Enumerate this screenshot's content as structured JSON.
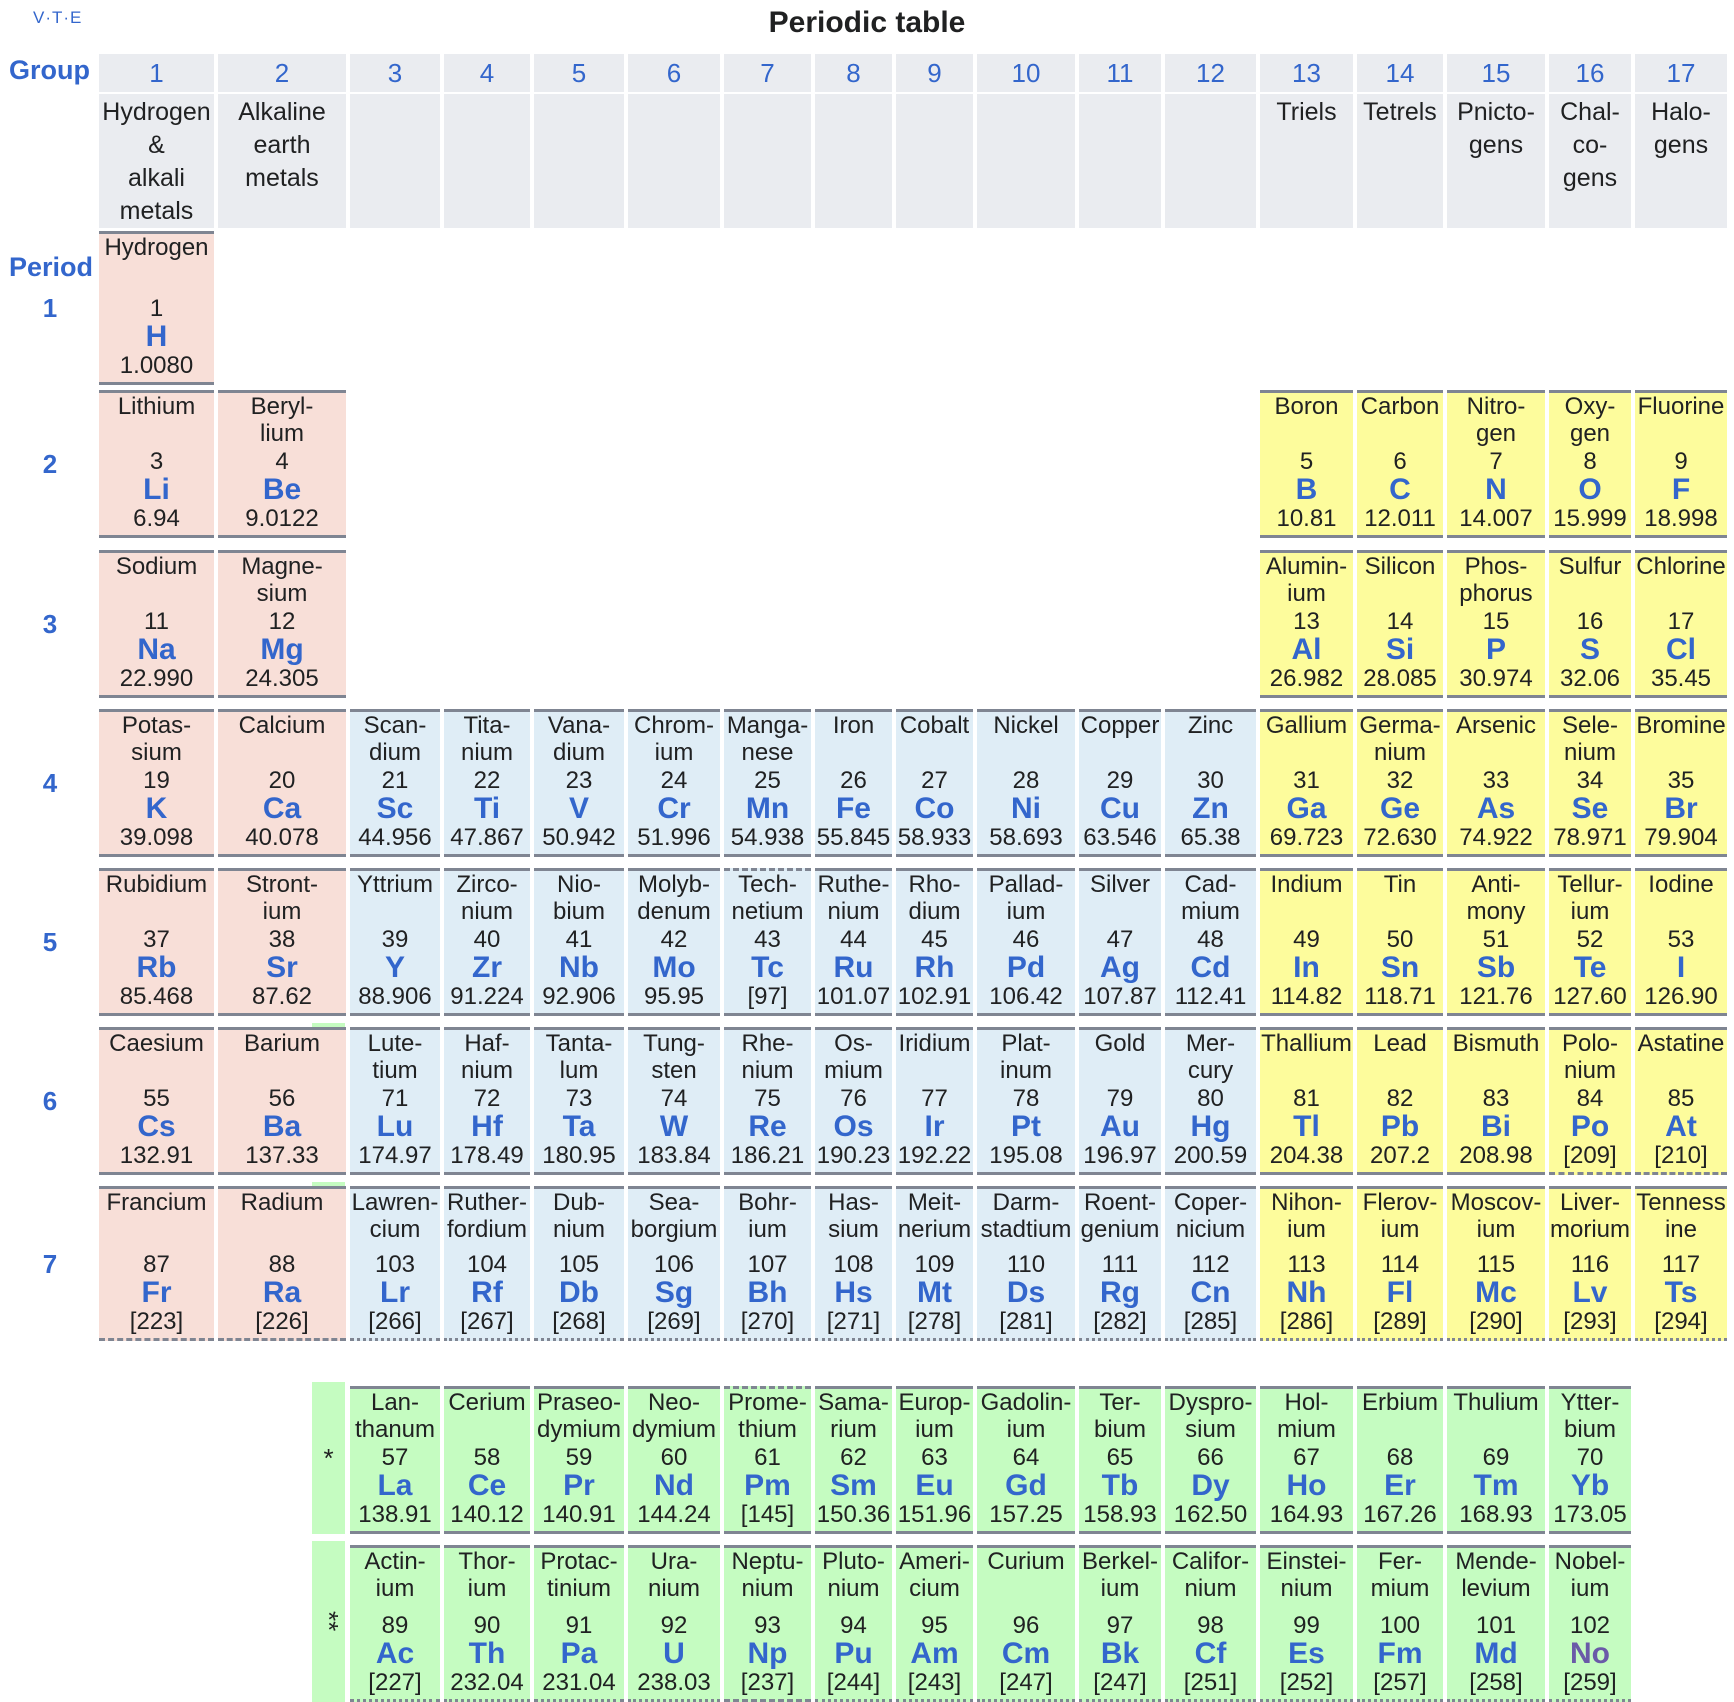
{
  "header": {
    "vte": "V·T·E",
    "title": "Periodic table"
  },
  "labels": {
    "group": "Group",
    "period": "Period"
  },
  "groups": [
    "1",
    "2",
    "3",
    "4",
    "5",
    "6",
    "7",
    "8",
    "9",
    "10",
    "11",
    "12",
    "13",
    "14",
    "15",
    "16",
    "17"
  ],
  "group_names": {
    "1": "Hydrogen\n&\nalkali\nmetals",
    "2": "Alkaline\nearth\nmetals",
    "13": "Triels",
    "14": "Tetrels",
    "15": "Pnicto-\ngens",
    "16": "Chal-\nco-\ngens",
    "17": "Halo-\ngens"
  },
  "periods": [
    "1",
    "2",
    "3",
    "4",
    "5",
    "6",
    "7"
  ],
  "markers": {
    "lanthanide": "*",
    "actinide": "**"
  },
  "colors": {
    "s_block": "#f8dfd8",
    "d_block": "#dfedf6",
    "p_block": "#fdfc9c",
    "f_block": "#c5fcc1",
    "link": "#3366cc"
  },
  "elements": [
    {
      "name": "Hydrogen",
      "z": "1",
      "sym": "H",
      "w": "1.0080",
      "g": 1,
      "p": 1,
      "b": "s"
    },
    {
      "name": "Lithium",
      "z": "3",
      "sym": "Li",
      "w": "6.94",
      "g": 1,
      "p": 2,
      "b": "s"
    },
    {
      "name": "Beryl-\nlium",
      "z": "4",
      "sym": "Be",
      "w": "9.0122",
      "g": 2,
      "p": 2,
      "b": "s"
    },
    {
      "name": "Boron",
      "z": "5",
      "sym": "B",
      "w": "10.81",
      "g": 13,
      "p": 2,
      "b": "p"
    },
    {
      "name": "Carbon",
      "z": "6",
      "sym": "C",
      "w": "12.011",
      "g": 14,
      "p": 2,
      "b": "p"
    },
    {
      "name": "Nitro-\ngen",
      "z": "7",
      "sym": "N",
      "w": "14.007",
      "g": 15,
      "p": 2,
      "b": "p"
    },
    {
      "name": "Oxy-\ngen",
      "z": "8",
      "sym": "O",
      "w": "15.999",
      "g": 16,
      "p": 2,
      "b": "p"
    },
    {
      "name": "Fluorine",
      "z": "9",
      "sym": "F",
      "w": "18.998",
      "g": 17,
      "p": 2,
      "b": "p"
    },
    {
      "name": "Sodium",
      "z": "11",
      "sym": "Na",
      "w": "22.990",
      "g": 1,
      "p": 3,
      "b": "s"
    },
    {
      "name": "Magne-\nsium",
      "z": "12",
      "sym": "Mg",
      "w": "24.305",
      "g": 2,
      "p": 3,
      "b": "s"
    },
    {
      "name": "Alumin-\nium",
      "z": "13",
      "sym": "Al",
      "w": "26.982",
      "g": 13,
      "p": 3,
      "b": "p"
    },
    {
      "name": "Silicon",
      "z": "14",
      "sym": "Si",
      "w": "28.085",
      "g": 14,
      "p": 3,
      "b": "p"
    },
    {
      "name": "Phos-\nphorus",
      "z": "15",
      "sym": "P",
      "w": "30.974",
      "g": 15,
      "p": 3,
      "b": "p"
    },
    {
      "name": "Sulfur",
      "z": "16",
      "sym": "S",
      "w": "32.06",
      "g": 16,
      "p": 3,
      "b": "p"
    },
    {
      "name": "Chlorine",
      "z": "17",
      "sym": "Cl",
      "w": "35.45",
      "g": 17,
      "p": 3,
      "b": "p"
    },
    {
      "name": "Potas-\nsium",
      "z": "19",
      "sym": "K",
      "w": "39.098",
      "g": 1,
      "p": 4,
      "b": "s"
    },
    {
      "name": "Calcium",
      "z": "20",
      "sym": "Ca",
      "w": "40.078",
      "g": 2,
      "p": 4,
      "b": "s"
    },
    {
      "name": "Scan-\ndium",
      "z": "21",
      "sym": "Sc",
      "w": "44.956",
      "g": 3,
      "p": 4,
      "b": "d"
    },
    {
      "name": "Tita-\nnium",
      "z": "22",
      "sym": "Ti",
      "w": "47.867",
      "g": 4,
      "p": 4,
      "b": "d"
    },
    {
      "name": "Vana-\ndium",
      "z": "23",
      "sym": "V",
      "w": "50.942",
      "g": 5,
      "p": 4,
      "b": "d"
    },
    {
      "name": "Chrom-\nium",
      "z": "24",
      "sym": "Cr",
      "w": "51.996",
      "g": 6,
      "p": 4,
      "b": "d"
    },
    {
      "name": "Manga-\nnese",
      "z": "25",
      "sym": "Mn",
      "w": "54.938",
      "g": 7,
      "p": 4,
      "b": "d"
    },
    {
      "name": "Iron",
      "z": "26",
      "sym": "Fe",
      "w": "55.845",
      "g": 8,
      "p": 4,
      "b": "d"
    },
    {
      "name": "Cobalt",
      "z": "27",
      "sym": "Co",
      "w": "58.933",
      "g": 9,
      "p": 4,
      "b": "d"
    },
    {
      "name": "Nickel",
      "z": "28",
      "sym": "Ni",
      "w": "58.693",
      "g": 10,
      "p": 4,
      "b": "d"
    },
    {
      "name": "Copper",
      "z": "29",
      "sym": "Cu",
      "w": "63.546",
      "g": 11,
      "p": 4,
      "b": "d"
    },
    {
      "name": "Zinc",
      "z": "30",
      "sym": "Zn",
      "w": "65.38",
      "g": 12,
      "p": 4,
      "b": "d"
    },
    {
      "name": "Gallium",
      "z": "31",
      "sym": "Ga",
      "w": "69.723",
      "g": 13,
      "p": 4,
      "b": "p"
    },
    {
      "name": "Germa-\nnium",
      "z": "32",
      "sym": "Ge",
      "w": "72.630",
      "g": 14,
      "p": 4,
      "b": "p"
    },
    {
      "name": "Arsenic",
      "z": "33",
      "sym": "As",
      "w": "74.922",
      "g": 15,
      "p": 4,
      "b": "p"
    },
    {
      "name": "Sele-\nnium",
      "z": "34",
      "sym": "Se",
      "w": "78.971",
      "g": 16,
      "p": 4,
      "b": "p"
    },
    {
      "name": "Bromine",
      "z": "35",
      "sym": "Br",
      "w": "79.904",
      "g": 17,
      "p": 4,
      "b": "p"
    },
    {
      "name": "Rubidium",
      "z": "37",
      "sym": "Rb",
      "w": "85.468",
      "g": 1,
      "p": 5,
      "b": "s"
    },
    {
      "name": "Stront-\nium",
      "z": "38",
      "sym": "Sr",
      "w": "87.62",
      "g": 2,
      "p": 5,
      "b": "s"
    },
    {
      "name": "Yttrium",
      "z": "39",
      "sym": "Y",
      "w": "88.906",
      "g": 3,
      "p": 5,
      "b": "d"
    },
    {
      "name": "Zirco-\nnium",
      "z": "40",
      "sym": "Zr",
      "w": "91.224",
      "g": 4,
      "p": 5,
      "b": "d"
    },
    {
      "name": "Nio-\nbium",
      "z": "41",
      "sym": "Nb",
      "w": "92.906",
      "g": 5,
      "p": 5,
      "b": "d"
    },
    {
      "name": "Molyb-\ndenum",
      "z": "42",
      "sym": "Mo",
      "w": "95.95",
      "g": 6,
      "p": 5,
      "b": "d"
    },
    {
      "name": "Tech-\nnetium",
      "z": "43",
      "sym": "Tc",
      "w": "[97]",
      "g": 7,
      "p": 5,
      "b": "d"
    },
    {
      "name": "Ruthe-\nnium",
      "z": "44",
      "sym": "Ru",
      "w": "101.07",
      "g": 8,
      "p": 5,
      "b": "d"
    },
    {
      "name": "Rho-\ndium",
      "z": "45",
      "sym": "Rh",
      "w": "102.91",
      "g": 9,
      "p": 5,
      "b": "d"
    },
    {
      "name": "Pallad-\nium",
      "z": "46",
      "sym": "Pd",
      "w": "106.42",
      "g": 10,
      "p": 5,
      "b": "d"
    },
    {
      "name": "Silver",
      "z": "47",
      "sym": "Ag",
      "w": "107.87",
      "g": 11,
      "p": 5,
      "b": "d"
    },
    {
      "name": "Cad-\nmium",
      "z": "48",
      "sym": "Cd",
      "w": "112.41",
      "g": 12,
      "p": 5,
      "b": "d"
    },
    {
      "name": "Indium",
      "z": "49",
      "sym": "In",
      "w": "114.82",
      "g": 13,
      "p": 5,
      "b": "p"
    },
    {
      "name": "Tin",
      "z": "50",
      "sym": "Sn",
      "w": "118.71",
      "g": 14,
      "p": 5,
      "b": "p"
    },
    {
      "name": "Anti-\nmony",
      "z": "51",
      "sym": "Sb",
      "w": "121.76",
      "g": 15,
      "p": 5,
      "b": "p"
    },
    {
      "name": "Tellur-\nium",
      "z": "52",
      "sym": "Te",
      "w": "127.60",
      "g": 16,
      "p": 5,
      "b": "p"
    },
    {
      "name": "Iodine",
      "z": "53",
      "sym": "I",
      "w": "126.90",
      "g": 17,
      "p": 5,
      "b": "p"
    },
    {
      "name": "Caesium",
      "z": "55",
      "sym": "Cs",
      "w": "132.91",
      "g": 1,
      "p": 6,
      "b": "s"
    },
    {
      "name": "Barium",
      "z": "56",
      "sym": "Ba",
      "w": "137.33",
      "g": 2,
      "p": 6,
      "b": "s"
    },
    {
      "name": "Lute-\ntium",
      "z": "71",
      "sym": "Lu",
      "w": "174.97",
      "g": 3,
      "p": 6,
      "b": "d"
    },
    {
      "name": "Haf-\nnium",
      "z": "72",
      "sym": "Hf",
      "w": "178.49",
      "g": 4,
      "p": 6,
      "b": "d"
    },
    {
      "name": "Tanta-\nlum",
      "z": "73",
      "sym": "Ta",
      "w": "180.95",
      "g": 5,
      "p": 6,
      "b": "d"
    },
    {
      "name": "Tung-\nsten",
      "z": "74",
      "sym": "W",
      "w": "183.84",
      "g": 6,
      "p": 6,
      "b": "d"
    },
    {
      "name": "Rhe-\nnium",
      "z": "75",
      "sym": "Re",
      "w": "186.21",
      "g": 7,
      "p": 6,
      "b": "d"
    },
    {
      "name": "Os-\nmium",
      "z": "76",
      "sym": "Os",
      "w": "190.23",
      "g": 8,
      "p": 6,
      "b": "d"
    },
    {
      "name": "Iridium",
      "z": "77",
      "sym": "Ir",
      "w": "192.22",
      "g": 9,
      "p": 6,
      "b": "d"
    },
    {
      "name": "Plat-\ninum",
      "z": "78",
      "sym": "Pt",
      "w": "195.08",
      "g": 10,
      "p": 6,
      "b": "d"
    },
    {
      "name": "Gold",
      "z": "79",
      "sym": "Au",
      "w": "196.97",
      "g": 11,
      "p": 6,
      "b": "d"
    },
    {
      "name": "Mer-\ncury",
      "z": "80",
      "sym": "Hg",
      "w": "200.59",
      "g": 12,
      "p": 6,
      "b": "d"
    },
    {
      "name": "Thallium",
      "z": "81",
      "sym": "Tl",
      "w": "204.38",
      "g": 13,
      "p": 6,
      "b": "p"
    },
    {
      "name": "Lead",
      "z": "82",
      "sym": "Pb",
      "w": "207.2",
      "g": 14,
      "p": 6,
      "b": "p"
    },
    {
      "name": "Bismuth",
      "z": "83",
      "sym": "Bi",
      "w": "208.98",
      "g": 15,
      "p": 6,
      "b": "p"
    },
    {
      "name": "Polo-\nnium",
      "z": "84",
      "sym": "Po",
      "w": "[209]",
      "g": 16,
      "p": 6,
      "b": "p"
    },
    {
      "name": "Astatine",
      "z": "85",
      "sym": "At",
      "w": "[210]",
      "g": 17,
      "p": 6,
      "b": "p"
    },
    {
      "name": "Francium",
      "z": "87",
      "sym": "Fr",
      "w": "[223]",
      "g": 1,
      "p": 7,
      "b": "s"
    },
    {
      "name": "Radium",
      "z": "88",
      "sym": "Ra",
      "w": "[226]",
      "g": 2,
      "p": 7,
      "b": "s"
    },
    {
      "name": "Lawren-\ncium",
      "z": "103",
      "sym": "Lr",
      "w": "[266]",
      "g": 3,
      "p": 7,
      "b": "d"
    },
    {
      "name": "Ruther-\nfordium",
      "z": "104",
      "sym": "Rf",
      "w": "[267]",
      "g": 4,
      "p": 7,
      "b": "d"
    },
    {
      "name": "Dub-\nnium",
      "z": "105",
      "sym": "Db",
      "w": "[268]",
      "g": 5,
      "p": 7,
      "b": "d"
    },
    {
      "name": "Sea-\nborgium",
      "z": "106",
      "sym": "Sg",
      "w": "[269]",
      "g": 6,
      "p": 7,
      "b": "d"
    },
    {
      "name": "Bohr-\nium",
      "z": "107",
      "sym": "Bh",
      "w": "[270]",
      "g": 7,
      "p": 7,
      "b": "d"
    },
    {
      "name": "Has-\nsium",
      "z": "108",
      "sym": "Hs",
      "w": "[271]",
      "g": 8,
      "p": 7,
      "b": "d"
    },
    {
      "name": "Meit-\nnerium",
      "z": "109",
      "sym": "Mt",
      "w": "[278]",
      "g": 9,
      "p": 7,
      "b": "d"
    },
    {
      "name": "Darm-\nstadtium",
      "z": "110",
      "sym": "Ds",
      "w": "[281]",
      "g": 10,
      "p": 7,
      "b": "d"
    },
    {
      "name": "Roent-\ngenium",
      "z": "111",
      "sym": "Rg",
      "w": "[282]",
      "g": 11,
      "p": 7,
      "b": "d"
    },
    {
      "name": "Coper-\nnicium",
      "z": "112",
      "sym": "Cn",
      "w": "[285]",
      "g": 12,
      "p": 7,
      "b": "d"
    },
    {
      "name": "Nihon-\nium",
      "z": "113",
      "sym": "Nh",
      "w": "[286]",
      "g": 13,
      "p": 7,
      "b": "p"
    },
    {
      "name": "Flerov-\nium",
      "z": "114",
      "sym": "Fl",
      "w": "[289]",
      "g": 14,
      "p": 7,
      "b": "p"
    },
    {
      "name": "Moscov-\nium",
      "z": "115",
      "sym": "Mc",
      "w": "[290]",
      "g": 15,
      "p": 7,
      "b": "p"
    },
    {
      "name": "Liver-\nmorium",
      "z": "116",
      "sym": "Lv",
      "w": "[293]",
      "g": 16,
      "p": 7,
      "b": "p"
    },
    {
      "name": "Tenness\nine",
      "z": "117",
      "sym": "Ts",
      "w": "[294]",
      "g": 17,
      "p": 7,
      "b": "p"
    },
    {
      "name": "Lan-\nthanum",
      "z": "57",
      "sym": "La",
      "w": "138.91",
      "g": 3,
      "p": 8,
      "b": "f"
    },
    {
      "name": "Cerium",
      "z": "58",
      "sym": "Ce",
      "w": "140.12",
      "g": 4,
      "p": 8,
      "b": "f"
    },
    {
      "name": "Praseo-\ndymium",
      "z": "59",
      "sym": "Pr",
      "w": "140.91",
      "g": 5,
      "p": 8,
      "b": "f"
    },
    {
      "name": "Neo-\ndymium",
      "z": "60",
      "sym": "Nd",
      "w": "144.24",
      "g": 6,
      "p": 8,
      "b": "f"
    },
    {
      "name": "Prome-\nthium",
      "z": "61",
      "sym": "Pm",
      "w": "[145]",
      "g": 7,
      "p": 8,
      "b": "f"
    },
    {
      "name": "Sama-\nrium",
      "z": "62",
      "sym": "Sm",
      "w": "150.36",
      "g": 8,
      "p": 8,
      "b": "f"
    },
    {
      "name": "Europ-\nium",
      "z": "63",
      "sym": "Eu",
      "w": "151.96",
      "g": 9,
      "p": 8,
      "b": "f"
    },
    {
      "name": "Gadolin-\nium",
      "z": "64",
      "sym": "Gd",
      "w": "157.25",
      "g": 10,
      "p": 8,
      "b": "f"
    },
    {
      "name": "Ter-\nbium",
      "z": "65",
      "sym": "Tb",
      "w": "158.93",
      "g": 11,
      "p": 8,
      "b": "f"
    },
    {
      "name": "Dyspro-\nsium",
      "z": "66",
      "sym": "Dy",
      "w": "162.50",
      "g": 12,
      "p": 8,
      "b": "f"
    },
    {
      "name": "Hol-\nmium",
      "z": "67",
      "sym": "Ho",
      "w": "164.93",
      "g": 13,
      "p": 8,
      "b": "f"
    },
    {
      "name": "Erbium",
      "z": "68",
      "sym": "Er",
      "w": "167.26",
      "g": 14,
      "p": 8,
      "b": "f"
    },
    {
      "name": "Thulium",
      "z": "69",
      "sym": "Tm",
      "w": "168.93",
      "g": 15,
      "p": 8,
      "b": "f"
    },
    {
      "name": "Ytter-\nbium",
      "z": "70",
      "sym": "Yb",
      "w": "173.05",
      "g": 16,
      "p": 8,
      "b": "f"
    },
    {
      "name": "Actin-\nium",
      "z": "89",
      "sym": "Ac",
      "w": "[227]",
      "g": 3,
      "p": 9,
      "b": "f"
    },
    {
      "name": "Thor-\nium",
      "z": "90",
      "sym": "Th",
      "w": "232.04",
      "g": 4,
      "p": 9,
      "b": "f"
    },
    {
      "name": "Protac-\ntinium",
      "z": "91",
      "sym": "Pa",
      "w": "231.04",
      "g": 5,
      "p": 9,
      "b": "f"
    },
    {
      "name": "Ura-\nnium",
      "z": "92",
      "sym": "U",
      "w": "238.03",
      "g": 6,
      "p": 9,
      "b": "f"
    },
    {
      "name": "Neptu-\nnium",
      "z": "93",
      "sym": "Np",
      "w": "[237]",
      "g": 7,
      "p": 9,
      "b": "f"
    },
    {
      "name": "Pluto-\nnium",
      "z": "94",
      "sym": "Pu",
      "w": "[244]",
      "g": 8,
      "p": 9,
      "b": "f"
    },
    {
      "name": "Ameri-\ncium",
      "z": "95",
      "sym": "Am",
      "w": "[243]",
      "g": 9,
      "p": 9,
      "b": "f"
    },
    {
      "name": "Curium",
      "z": "96",
      "sym": "Cm",
      "w": "[247]",
      "g": 10,
      "p": 9,
      "b": "f"
    },
    {
      "name": "Berkel-\nium",
      "z": "97",
      "sym": "Bk",
      "w": "[247]",
      "g": 11,
      "p": 9,
      "b": "f"
    },
    {
      "name": "Califor-\nnium",
      "z": "98",
      "sym": "Cf",
      "w": "[251]",
      "g": 12,
      "p": 9,
      "b": "f"
    },
    {
      "name": "Einstei-\nnium",
      "z": "99",
      "sym": "Es",
      "w": "[252]",
      "g": 13,
      "p": 9,
      "b": "f"
    },
    {
      "name": "Fer-\nmium",
      "z": "100",
      "sym": "Fm",
      "w": "[257]",
      "g": 14,
      "p": 9,
      "b": "f"
    },
    {
      "name": "Mende-\nlevium",
      "z": "101",
      "sym": "Md",
      "w": "[258]",
      "g": 15,
      "p": 9,
      "b": "f"
    },
    {
      "name": "Nobel-\nium",
      "z": "102",
      "sym": "No",
      "w": "[259]",
      "g": 16,
      "p": 9,
      "b": "f"
    }
  ]
}
